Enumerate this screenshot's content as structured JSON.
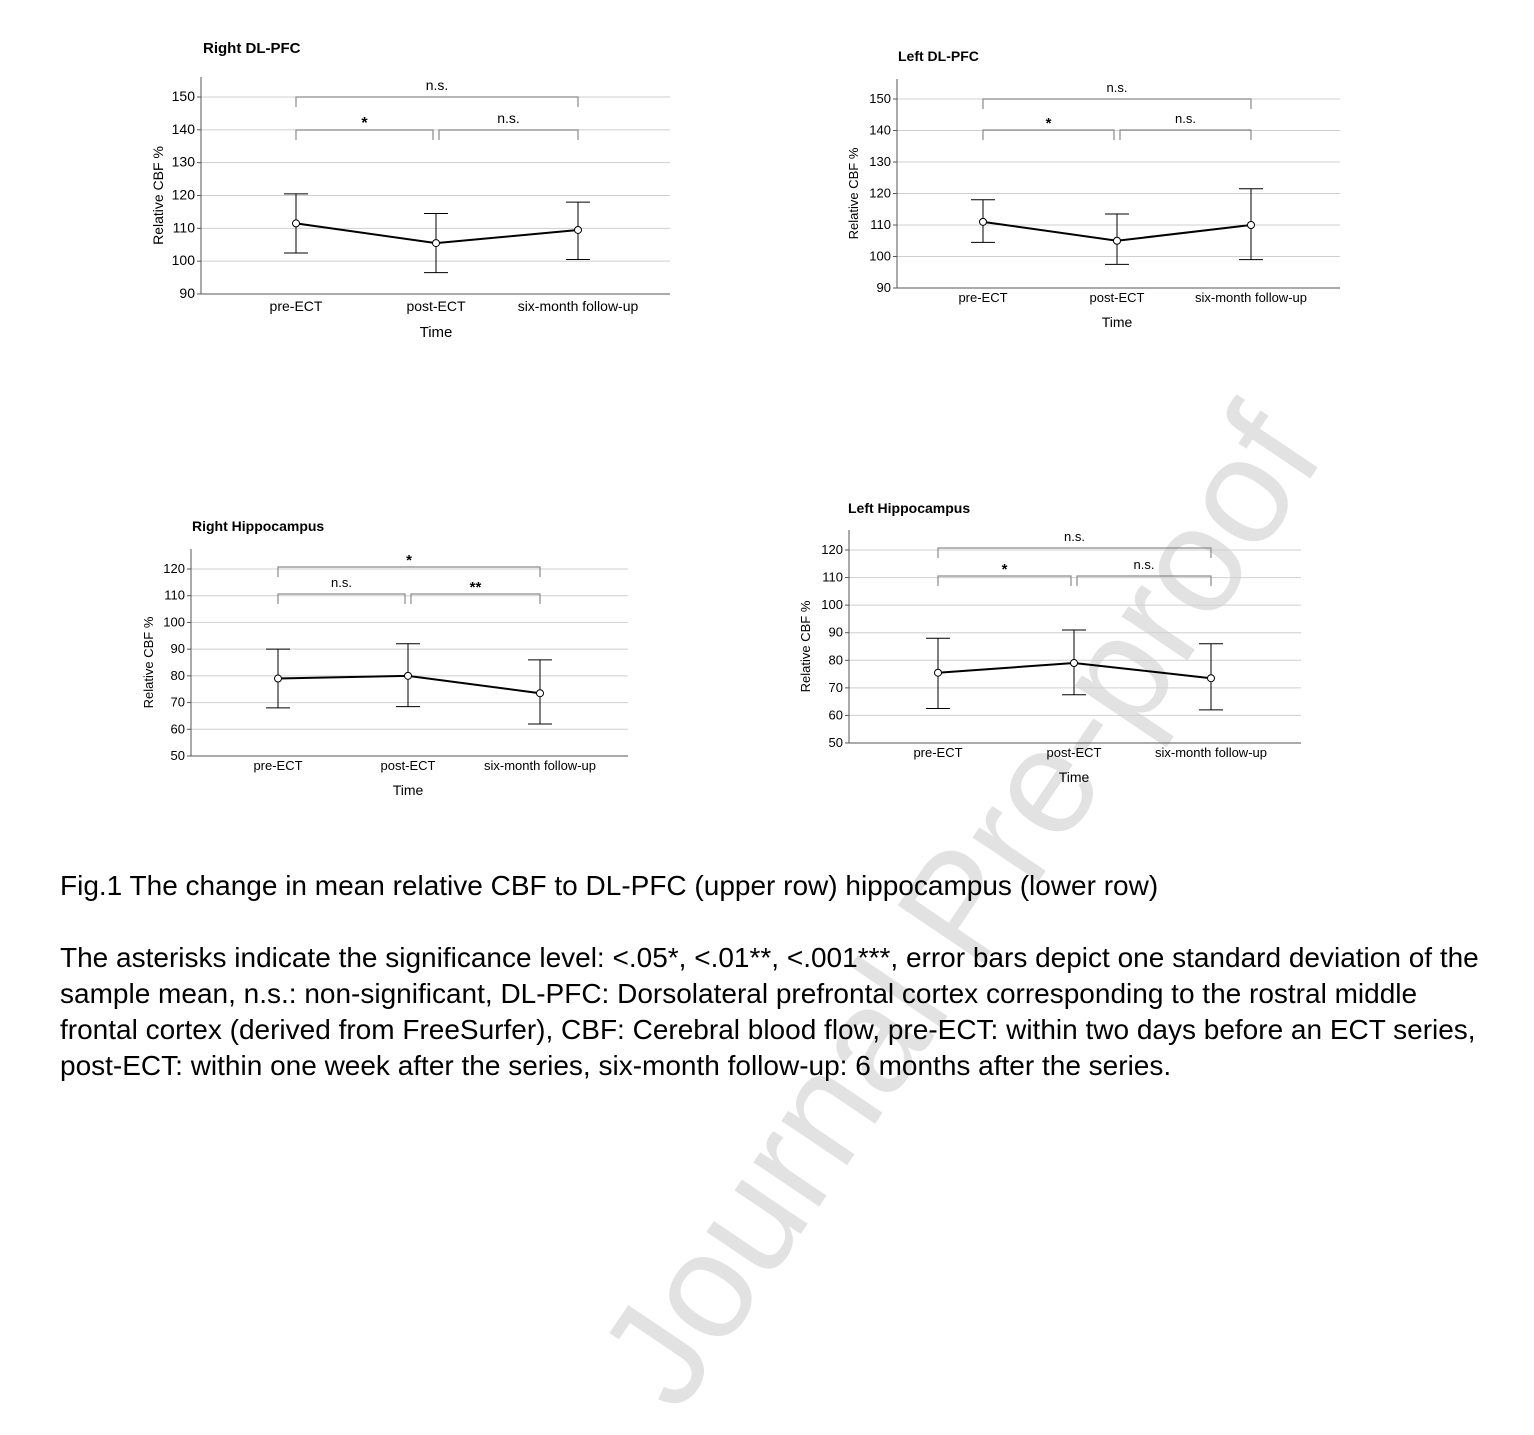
{
  "watermark": "Journal Pre-proof",
  "chart_data": [
    {
      "type": "line",
      "title": "Right DL-PFC",
      "xlabel": "Time",
      "ylabel": "Relative CBF %",
      "categories": [
        "pre-ECT",
        "post-ECT",
        "six-month follow-up"
      ],
      "yticks": [
        90,
        100,
        110,
        120,
        130,
        140,
        150
      ],
      "ylim": [
        90,
        150
      ],
      "grid": true,
      "values": [
        111.5,
        105.5,
        109.5
      ],
      "error_low": [
        102.5,
        96.5,
        100.5
      ],
      "error_high": [
        120.5,
        114.5,
        118
      ],
      "brackets": [
        {
          "from": 0,
          "to": 2,
          "level": 1,
          "label": "n.s."
        },
        {
          "from": 0,
          "to": 1,
          "level": 0,
          "label": "*"
        },
        {
          "from": 1,
          "to": 2,
          "level": 0,
          "label": "n.s."
        }
      ]
    },
    {
      "type": "line",
      "title": "Left DL-PFC",
      "xlabel": "Time",
      "ylabel": "Relative CBF %",
      "categories": [
        "pre-ECT",
        "post-ECT",
        "six-month follow-up"
      ],
      "yticks": [
        90,
        100,
        110,
        120,
        130,
        140,
        150
      ],
      "ylim": [
        90,
        150
      ],
      "grid": true,
      "values": [
        111,
        105,
        110
      ],
      "error_low": [
        104.5,
        97.5,
        99
      ],
      "error_high": [
        118,
        113.5,
        121.5
      ],
      "brackets": [
        {
          "from": 0,
          "to": 2,
          "level": 1,
          "label": "n.s."
        },
        {
          "from": 0,
          "to": 1,
          "level": 0,
          "label": "*"
        },
        {
          "from": 1,
          "to": 2,
          "level": 0,
          "label": "n.s."
        }
      ]
    },
    {
      "type": "line",
      "title": "Right Hippocampus",
      "xlabel": "Time",
      "ylabel": "Relative CBF %",
      "categories": [
        "pre-ECT",
        "post-ECT",
        "six-month follow-up"
      ],
      "yticks": [
        50,
        60,
        70,
        80,
        90,
        100,
        110,
        120
      ],
      "ylim": [
        50,
        120
      ],
      "grid": true,
      "values": [
        79,
        80,
        73.5
      ],
      "error_low": [
        68,
        68.5,
        62
      ],
      "error_high": [
        90,
        92,
        86
      ],
      "brackets": [
        {
          "from": 0,
          "to": 2,
          "level": 1,
          "label": "*"
        },
        {
          "from": 0,
          "to": 1,
          "level": 0,
          "label": "n.s."
        },
        {
          "from": 1,
          "to": 2,
          "level": 0,
          "label": "**"
        }
      ]
    },
    {
      "type": "line",
      "title": "Left Hippocampus",
      "xlabel": "Time",
      "ylabel": "Relative CBF %",
      "categories": [
        "pre-ECT",
        "post-ECT",
        "six-month follow-up"
      ],
      "yticks": [
        50,
        60,
        70,
        80,
        90,
        100,
        110,
        120
      ],
      "ylim": [
        50,
        120
      ],
      "grid": true,
      "values": [
        75.5,
        79,
        73.5
      ],
      "error_low": [
        62.5,
        67.5,
        62
      ],
      "error_high": [
        88,
        91,
        86
      ],
      "brackets": [
        {
          "from": 0,
          "to": 2,
          "level": 1,
          "label": "n.s."
        },
        {
          "from": 0,
          "to": 1,
          "level": 0,
          "label": "*"
        },
        {
          "from": 1,
          "to": 2,
          "level": 0,
          "label": "n.s."
        }
      ]
    }
  ],
  "caption": {
    "title": "Fig.1 The change in mean relative CBF to DL-PFC (upper row) hippocampus (lower row)",
    "body": "The asterisks indicate the significance level: <.05*, <.01**, <.001***, error bars depict one standard deviation of the sample mean, n.s.: non-significant, DL-PFC: Dorsolateral prefrontal cortex corresponding to the rostral middle frontal cortex (derived from FreeSurfer), CBF: Cerebral blood flow, pre-ECT: within two days before an ECT series, post-ECT: within one week after the series, six-month follow-up: 6 months after the series."
  }
}
